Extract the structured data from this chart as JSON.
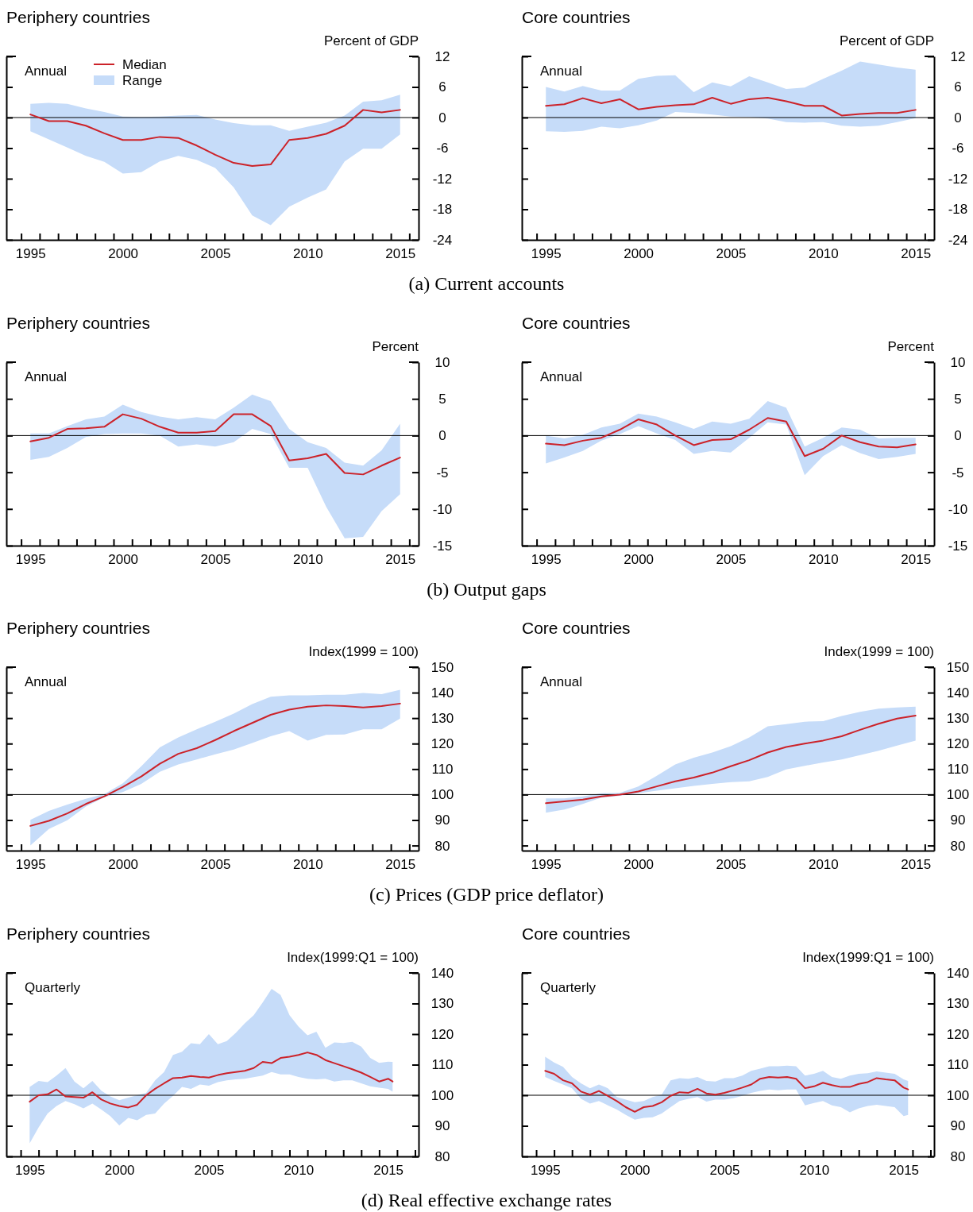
{
  "chart_data": [
    {
      "type": "line",
      "title": "Periphery countries",
      "ylabel": "Percent of GDP",
      "x": [
        1995,
        1996,
        1997,
        1998,
        1999,
        2000,
        2001,
        2002,
        2003,
        2004,
        2005,
        2006,
        2007,
        2008,
        2009,
        2010,
        2011,
        2012,
        2013,
        2014,
        2015
      ],
      "xlim": [
        1993.7,
        2016
      ],
      "xticks": [
        {
          "value": 1994.5,
          "label": null
        },
        {
          "value": 1995.5,
          "label": null
        },
        {
          "value": 1996.5,
          "label": null
        },
        {
          "value": 1997.5,
          "label": null
        },
        {
          "value": 1998.5,
          "label": null
        },
        {
          "value": 1999.5,
          "label": null
        },
        {
          "value": 2000.5,
          "label": null
        },
        {
          "value": 2001.5,
          "label": null
        },
        {
          "value": 2002.5,
          "label": null
        },
        {
          "value": 2003.5,
          "label": null
        },
        {
          "value": 2004.5,
          "label": null
        },
        {
          "value": 2005.5,
          "label": null
        },
        {
          "value": 2006.5,
          "label": null
        },
        {
          "value": 2007.5,
          "label": null
        },
        {
          "value": 2008.5,
          "label": null
        },
        {
          "value": 2009.5,
          "label": null
        },
        {
          "value": 2010.5,
          "label": null
        },
        {
          "value": 2011.5,
          "label": null
        },
        {
          "value": 2012.5,
          "label": null
        },
        {
          "value": 2013.5,
          "label": null
        },
        {
          "value": 2014.5,
          "label": null
        },
        {
          "value": 2015.5,
          "label": null
        },
        1995,
        2000,
        2005,
        2010,
        2015
      ],
      "ylim": [
        -24,
        12
      ],
      "yticks": [
        -24,
        -18,
        -12,
        -6,
        0,
        6,
        12
      ],
      "legend": "top left",
      "annotations": [
        "Annual",
        "(a) Current accounts",
        "Range"
      ],
      "ref_lines": [
        {
          "axis": "y",
          "value": 0,
          "color": "#000000"
        }
      ],
      "series": [
        {
          "name": "Median",
          "color": "#cc2229",
          "values": [
            0.6,
            -0.7,
            -0.7,
            -1.6,
            -3.1,
            -4.4,
            -4.4,
            -3.8,
            -4.0,
            -5.5,
            -7.3,
            -8.9,
            -9.5,
            -9.2,
            -4.4,
            -4.0,
            -3.2,
            -1.6,
            1.5,
            1.0,
            1.5
          ],
          "lower": [
            -2.7,
            -4.3,
            -5.9,
            -7.5,
            -8.7,
            -11.0,
            -10.7,
            -8.6,
            -7.5,
            -8.3,
            -9.9,
            -13.7,
            -19.2,
            -21.1,
            -17.5,
            -15.7,
            -14.1,
            -8.6,
            -6.1,
            -6.1,
            -3.3
          ],
          "upper": [
            2.7,
            2.9,
            2.7,
            1.8,
            1.1,
            0.2,
            0.1,
            0.2,
            0.4,
            0.5,
            -0.4,
            -1.1,
            -1.5,
            -1.5,
            -2.6,
            -1.8,
            -1.0,
            0.4,
            3.1,
            3.4,
            4.5
          ]
        }
      ]
    },
    {
      "type": "line",
      "title": "Core countries",
      "ylabel": "Percent of GDP",
      "x": [
        1995,
        1996,
        1997,
        1998,
        1999,
        2000,
        2001,
        2002,
        2003,
        2004,
        2005,
        2006,
        2007,
        2008,
        2009,
        2010,
        2011,
        2012,
        2013,
        2014,
        2015
      ],
      "xlim": [
        1993.7,
        2016
      ],
      "xticks": [
        {
          "value": 1994.5,
          "label": null
        },
        {
          "value": 1995.5,
          "label": null
        },
        {
          "value": 1996.5,
          "label": null
        },
        {
          "value": 1997.5,
          "label": null
        },
        {
          "value": 1998.5,
          "label": null
        },
        {
          "value": 1999.5,
          "label": null
        },
        {
          "value": 2000.5,
          "label": null
        },
        {
          "value": 2001.5,
          "label": null
        },
        {
          "value": 2002.5,
          "label": null
        },
        {
          "value": 2003.5,
          "label": null
        },
        {
          "value": 2004.5,
          "label": null
        },
        {
          "value": 2005.5,
          "label": null
        },
        {
          "value": 2006.5,
          "label": null
        },
        {
          "value": 2007.5,
          "label": null
        },
        {
          "value": 2008.5,
          "label": null
        },
        {
          "value": 2009.5,
          "label": null
        },
        {
          "value": 2010.5,
          "label": null
        },
        {
          "value": 2011.5,
          "label": null
        },
        {
          "value": 2012.5,
          "label": null
        },
        {
          "value": 2013.5,
          "label": null
        },
        {
          "value": 2014.5,
          "label": null
        },
        {
          "value": 2015.5,
          "label": null
        },
        1995,
        2000,
        2005,
        2010,
        2015
      ],
      "ylim": [
        -24,
        12
      ],
      "yticks": [
        -24,
        -18,
        -12,
        -6,
        0,
        6,
        12
      ],
      "annotations": [
        "Annual"
      ],
      "ref_lines": [
        {
          "axis": "y",
          "value": 0,
          "color": "#000000"
        }
      ],
      "series": [
        {
          "color": "#cc2229",
          "values": [
            2.3,
            2.6,
            3.8,
            2.8,
            3.6,
            1.6,
            2.1,
            2.4,
            2.6,
            3.9,
            2.7,
            3.6,
            3.9,
            3.2,
            2.3,
            2.3,
            0.4,
            0.7,
            0.9,
            0.9,
            1.5
          ],
          "lower": [
            -2.7,
            -2.8,
            -2.6,
            -1.8,
            -2.1,
            -1.5,
            -0.6,
            1.1,
            0.9,
            0.6,
            0.2,
            0.1,
            -0.2,
            -0.9,
            -1.0,
            -0.9,
            -1.6,
            -1.8,
            -1.6,
            -0.9,
            -0.1
          ],
          "upper": [
            6.0,
            5.1,
            6.2,
            5.3,
            5.3,
            7.6,
            8.2,
            8.3,
            5.0,
            6.9,
            6.1,
            8.1,
            6.9,
            5.6,
            5.9,
            7.6,
            9.2,
            11.0,
            10.4,
            9.8,
            9.4
          ]
        }
      ]
    },
    {
      "type": "line",
      "title": "Periphery countries",
      "ylabel": "Percent",
      "x": [
        1995,
        1996,
        1997,
        1998,
        1999,
        2000,
        2001,
        2002,
        2003,
        2004,
        2005,
        2006,
        2007,
        2008,
        2009,
        2010,
        2011,
        2012,
        2013,
        2014,
        2015
      ],
      "xlim": [
        1993.7,
        2016
      ],
      "xticks": [
        {
          "value": 1994.5,
          "label": null
        },
        {
          "value": 1995.5,
          "label": null
        },
        {
          "value": 1996.5,
          "label": null
        },
        {
          "value": 1997.5,
          "label": null
        },
        {
          "value": 1998.5,
          "label": null
        },
        {
          "value": 1999.5,
          "label": null
        },
        {
          "value": 2000.5,
          "label": null
        },
        {
          "value": 2001.5,
          "label": null
        },
        {
          "value": 2002.5,
          "label": null
        },
        {
          "value": 2003.5,
          "label": null
        },
        {
          "value": 2004.5,
          "label": null
        },
        {
          "value": 2005.5,
          "label": null
        },
        {
          "value": 2006.5,
          "label": null
        },
        {
          "value": 2007.5,
          "label": null
        },
        {
          "value": 2008.5,
          "label": null
        },
        {
          "value": 2009.5,
          "label": null
        },
        {
          "value": 2010.5,
          "label": null
        },
        {
          "value": 2011.5,
          "label": null
        },
        {
          "value": 2012.5,
          "label": null
        },
        {
          "value": 2013.5,
          "label": null
        },
        {
          "value": 2014.5,
          "label": null
        },
        {
          "value": 2015.5,
          "label": null
        },
        1995,
        2000,
        2005,
        2010,
        2015
      ],
      "ylim": [
        -15,
        10
      ],
      "yticks": [
        -15,
        -10,
        -5,
        0,
        5,
        10
      ],
      "annotations": [
        "Annual",
        "(b) Output gaps"
      ],
      "ref_lines": [
        {
          "axis": "y",
          "value": 0,
          "color": "#000000"
        }
      ],
      "series": [
        {
          "color": "#cc2229",
          "values": [
            -0.8,
            -0.3,
            0.9,
            1.0,
            1.2,
            2.9,
            2.3,
            1.2,
            0.4,
            0.4,
            0.6,
            2.9,
            2.9,
            1.3,
            -3.4,
            -3.1,
            -2.5,
            -5.1,
            -5.3,
            -4.1,
            -3.0
          ],
          "lower": [
            -3.3,
            -2.9,
            -1.7,
            -0.2,
            0.2,
            0.3,
            0.3,
            0.0,
            -1.5,
            -1.2,
            -1.5,
            -0.9,
            0.9,
            0.2,
            -4.4,
            -4.4,
            -9.7,
            -14.0,
            -13.8,
            -10.3,
            -8.0
          ],
          "upper": [
            0.3,
            0.3,
            1.3,
            2.2,
            2.6,
            4.2,
            3.2,
            2.6,
            2.2,
            2.5,
            2.2,
            3.8,
            5.6,
            4.7,
            0.9,
            -0.9,
            -1.7,
            -3.7,
            -4.1,
            -2.0,
            1.6
          ]
        }
      ]
    },
    {
      "type": "line",
      "title": "Core countries",
      "ylabel": "Percent",
      "x": [
        1995,
        1996,
        1997,
        1998,
        1999,
        2000,
        2001,
        2002,
        2003,
        2004,
        2005,
        2006,
        2007,
        2008,
        2009,
        2010,
        2011,
        2012,
        2013,
        2014,
        2015
      ],
      "xlim": [
        1993.7,
        2016
      ],
      "xticks": [
        {
          "value": 1994.5,
          "label": null
        },
        {
          "value": 1995.5,
          "label": null
        },
        {
          "value": 1996.5,
          "label": null
        },
        {
          "value": 1997.5,
          "label": null
        },
        {
          "value": 1998.5,
          "label": null
        },
        {
          "value": 1999.5,
          "label": null
        },
        {
          "value": 2000.5,
          "label": null
        },
        {
          "value": 2001.5,
          "label": null
        },
        {
          "value": 2002.5,
          "label": null
        },
        {
          "value": 2003.5,
          "label": null
        },
        {
          "value": 2004.5,
          "label": null
        },
        {
          "value": 2005.5,
          "label": null
        },
        {
          "value": 2006.5,
          "label": null
        },
        {
          "value": 2007.5,
          "label": null
        },
        {
          "value": 2008.5,
          "label": null
        },
        {
          "value": 2009.5,
          "label": null
        },
        {
          "value": 2010.5,
          "label": null
        },
        {
          "value": 2011.5,
          "label": null
        },
        {
          "value": 2012.5,
          "label": null
        },
        {
          "value": 2013.5,
          "label": null
        },
        {
          "value": 2014.5,
          "label": null
        },
        {
          "value": 2015.5,
          "label": null
        },
        1995,
        2000,
        2005,
        2010,
        2015
      ],
      "ylim": [
        -15,
        10
      ],
      "yticks": [
        -15,
        -10,
        -5,
        0,
        5,
        10
      ],
      "annotations": [
        "Annual"
      ],
      "ref_lines": [
        {
          "axis": "y",
          "value": 0,
          "color": "#000000"
        }
      ],
      "series": [
        {
          "color": "#cc2229",
          "values": [
            -1.1,
            -1.3,
            -0.7,
            -0.3,
            0.8,
            2.2,
            1.5,
            0.0,
            -1.3,
            -0.6,
            -0.5,
            0.8,
            2.4,
            1.9,
            -2.8,
            -1.8,
            0.0,
            -0.9,
            -1.5,
            -1.6,
            -1.2
          ],
          "lower": [
            -3.8,
            -3.0,
            -2.1,
            -0.7,
            0.2,
            1.3,
            0.3,
            -0.6,
            -2.5,
            -2.1,
            -2.3,
            -0.3,
            1.8,
            1.5,
            -5.4,
            -2.8,
            -1.3,
            -2.4,
            -3.2,
            -2.9,
            -2.5
          ],
          "upper": [
            0.0,
            -0.4,
            0.1,
            1.1,
            1.6,
            3.0,
            2.6,
            1.8,
            0.9,
            1.9,
            1.6,
            2.3,
            4.7,
            3.8,
            -1.5,
            -0.3,
            1.1,
            0.8,
            -0.4,
            -0.3,
            -0.3
          ]
        }
      ]
    },
    {
      "type": "line",
      "title": "Periphery countries",
      "ylabel": "Index(1999 = 100)",
      "x": [
        1995,
        1996,
        1997,
        1998,
        1999,
        2000,
        2001,
        2002,
        2003,
        2004,
        2005,
        2006,
        2007,
        2008,
        2009,
        2010,
        2011,
        2012,
        2013,
        2014,
        2015
      ],
      "xlim": [
        1993.7,
        2016
      ],
      "xticks": [
        {
          "value": 1994.5,
          "label": null
        },
        {
          "value": 1995.5,
          "label": null
        },
        {
          "value": 1996.5,
          "label": null
        },
        {
          "value": 1997.5,
          "label": null
        },
        {
          "value": 1998.5,
          "label": null
        },
        {
          "value": 1999.5,
          "label": null
        },
        {
          "value": 2000.5,
          "label": null
        },
        {
          "value": 2001.5,
          "label": null
        },
        {
          "value": 2002.5,
          "label": null
        },
        {
          "value": 2003.5,
          "label": null
        },
        {
          "value": 2004.5,
          "label": null
        },
        {
          "value": 2005.5,
          "label": null
        },
        {
          "value": 2006.5,
          "label": null
        },
        {
          "value": 2007.5,
          "label": null
        },
        {
          "value": 2008.5,
          "label": null
        },
        {
          "value": 2009.5,
          "label": null
        },
        {
          "value": 2010.5,
          "label": null
        },
        {
          "value": 2011.5,
          "label": null
        },
        {
          "value": 2012.5,
          "label": null
        },
        {
          "value": 2013.5,
          "label": null
        },
        {
          "value": 2014.5,
          "label": null
        },
        {
          "value": 2015.5,
          "label": null
        },
        1995,
        2000,
        2005,
        2010,
        2015
      ],
      "ylim": [
        78,
        150
      ],
      "yticks": [
        80,
        90,
        100,
        110,
        120,
        130,
        140,
        150
      ],
      "annotations": [
        "Annual",
        "(c) Prices (GDP price deflator)"
      ],
      "ref_lines": [
        {
          "axis": "y",
          "value": 100,
          "color": "#000000"
        }
      ],
      "series": [
        {
          "color": "#cc2229",
          "values": [
            87.7,
            89.7,
            92.6,
            96.3,
            99.3,
            103.0,
            107.1,
            112.1,
            116.0,
            118.2,
            121.4,
            124.9,
            128.1,
            131.3,
            133.3,
            134.5,
            135.0,
            134.7,
            134.2,
            134.7,
            135.7
          ],
          "lower": [
            80.0,
            86.5,
            89.9,
            95.3,
            99.0,
            101.0,
            104.2,
            108.9,
            111.8,
            113.8,
            115.8,
            117.7,
            120.2,
            122.9,
            124.9,
            121.2,
            123.4,
            123.6,
            125.6,
            125.6,
            129.8
          ],
          "upper": [
            90.1,
            93.6,
            96.1,
            98.3,
            100.2,
            104.4,
            111.1,
            118.5,
            122.4,
            125.6,
            128.6,
            131.8,
            135.5,
            138.4,
            138.9,
            138.9,
            139.2,
            139.2,
            139.9,
            139.4,
            141.1
          ]
        }
      ]
    },
    {
      "type": "line",
      "title": "Core countries",
      "ylabel": "Index(1999 = 100)",
      "x": [
        1995,
        1996,
        1997,
        1998,
        1999,
        2000,
        2001,
        2002,
        2003,
        2004,
        2005,
        2006,
        2007,
        2008,
        2009,
        2010,
        2011,
        2012,
        2013,
        2014,
        2015
      ],
      "xlim": [
        1993.7,
        2016
      ],
      "xticks": [
        {
          "value": 1994.5,
          "label": null
        },
        {
          "value": 1995.5,
          "label": null
        },
        {
          "value": 1996.5,
          "label": null
        },
        {
          "value": 1997.5,
          "label": null
        },
        {
          "value": 1998.5,
          "label": null
        },
        {
          "value": 1999.5,
          "label": null
        },
        {
          "value": 2000.5,
          "label": null
        },
        {
          "value": 2001.5,
          "label": null
        },
        {
          "value": 2002.5,
          "label": null
        },
        {
          "value": 2003.5,
          "label": null
        },
        {
          "value": 2004.5,
          "label": null
        },
        {
          "value": 2005.5,
          "label": null
        },
        {
          "value": 2006.5,
          "label": null
        },
        {
          "value": 2007.5,
          "label": null
        },
        {
          "value": 2008.5,
          "label": null
        },
        {
          "value": 2009.5,
          "label": null
        },
        {
          "value": 2010.5,
          "label": null
        },
        {
          "value": 2011.5,
          "label": null
        },
        {
          "value": 2012.5,
          "label": null
        },
        {
          "value": 2013.5,
          "label": null
        },
        {
          "value": 2014.5,
          "label": null
        },
        {
          "value": 2015.5,
          "label": null
        },
        1995,
        2000,
        2005,
        2010,
        2015
      ],
      "ylim": [
        78,
        150
      ],
      "yticks": [
        80,
        90,
        100,
        110,
        120,
        130,
        140,
        150
      ],
      "annotations": [
        "Annual"
      ],
      "ref_lines": [
        {
          "axis": "y",
          "value": 100,
          "color": "#000000"
        }
      ],
      "series": [
        {
          "color": "#cc2229",
          "values": [
            96.6,
            97.3,
            98.0,
            99.3,
            100.0,
            101.2,
            103.2,
            105.2,
            106.7,
            108.6,
            111.1,
            113.5,
            116.5,
            118.7,
            120.0,
            121.2,
            122.9,
            125.4,
            127.8,
            129.8,
            131.0
          ],
          "lower": [
            92.9,
            94.1,
            96.3,
            98.8,
            99.5,
            100.5,
            101.5,
            102.5,
            103.4,
            104.2,
            104.9,
            105.2,
            106.9,
            109.9,
            111.3,
            112.6,
            113.8,
            115.5,
            117.2,
            119.2,
            121.2
          ],
          "upper": [
            98.5,
            98.5,
            99.3,
            100.5,
            100.7,
            103.2,
            107.4,
            111.8,
            114.5,
            116.5,
            119.0,
            122.4,
            126.8,
            127.6,
            128.6,
            128.8,
            130.8,
            132.5,
            133.7,
            134.2,
            134.5
          ]
        }
      ]
    },
    {
      "type": "line",
      "title": "Periphery countries",
      "ylabel": "Index(1999:Q1 = 100)",
      "x": [
        1995,
        1995.5,
        1996,
        1996.5,
        1997,
        1997.5,
        1998,
        1998.5,
        1999,
        1999.5,
        2000,
        2000.5,
        2001,
        2001.5,
        2002,
        2002.5,
        2003,
        2003.5,
        2004,
        2004.5,
        2005,
        2005.5,
        2006,
        2006.5,
        2007,
        2007.5,
        2008,
        2008.5,
        2009,
        2009.5,
        2010,
        2010.5,
        2011,
        2011.5,
        2012,
        2012.5,
        2013,
        2013.5,
        2014,
        2014.5,
        2015,
        2015.25
      ],
      "xlim": [
        1993.7,
        2016.7
      ],
      "xticks": [
        {
          "value": 1994.5,
          "label": null
        },
        {
          "value": 1995.5,
          "label": null
        },
        {
          "value": 1996.5,
          "label": null
        },
        {
          "value": 1997.5,
          "label": null
        },
        {
          "value": 1998.5,
          "label": null
        },
        {
          "value": 1999.5,
          "label": null
        },
        {
          "value": 2000.5,
          "label": null
        },
        {
          "value": 2001.5,
          "label": null
        },
        {
          "value": 2002.5,
          "label": null
        },
        {
          "value": 2003.5,
          "label": null
        },
        {
          "value": 2004.5,
          "label": null
        },
        {
          "value": 2005.5,
          "label": null
        },
        {
          "value": 2006.5,
          "label": null
        },
        {
          "value": 2007.5,
          "label": null
        },
        {
          "value": 2008.5,
          "label": null
        },
        {
          "value": 2009.5,
          "label": null
        },
        {
          "value": 2010.5,
          "label": null
        },
        {
          "value": 2011.5,
          "label": null
        },
        {
          "value": 2012.5,
          "label": null
        },
        {
          "value": 2013.5,
          "label": null
        },
        {
          "value": 2014.5,
          "label": null
        },
        {
          "value": 2015.5,
          "label": null
        },
        {
          "value": 2016.5,
          "label": null
        },
        1995,
        2000,
        2005,
        2010,
        2015
      ],
      "ylim": [
        80,
        140
      ],
      "yticks": [
        80,
        90,
        100,
        110,
        120,
        130,
        140
      ],
      "annotations": [
        "Quarterly",
        "(d) Real effective exchange rates"
      ],
      "ref_lines": [
        {
          "axis": "y",
          "value": 100,
          "color": "#000000"
        }
      ],
      "series": [
        {
          "color": "#cc2229",
          "values": [
            97.9,
            100.0,
            100.3,
            101.9,
            99.6,
            99.4,
            99.2,
            101.0,
            98.6,
            97.3,
            96.5,
            96.0,
            96.9,
            100.0,
            102.1,
            103.9,
            105.6,
            105.8,
            106.3,
            106.0,
            105.8,
            106.6,
            107.2,
            107.6,
            108.0,
            108.9,
            110.9,
            110.5,
            112.2,
            112.6,
            113.2,
            114.0,
            113.2,
            111.5,
            110.5,
            109.5,
            108.5,
            107.4,
            106.0,
            104.5,
            105.4,
            104.5
          ],
          "lower": [
            84.3,
            89.5,
            94.0,
            96.5,
            98.1,
            97.1,
            95.7,
            97.3,
            95.3,
            93.2,
            90.1,
            92.6,
            91.8,
            93.6,
            94.0,
            97.3,
            99.8,
            102.7,
            102.1,
            103.5,
            103.1,
            104.3,
            104.9,
            105.2,
            105.4,
            105.9,
            106.4,
            107.6,
            106.8,
            106.8,
            106.0,
            105.4,
            105.2,
            105.4,
            104.5,
            104.9,
            104.9,
            103.9,
            102.9,
            102.5,
            102.1,
            101.2
          ],
          "upper": [
            102.7,
            104.7,
            104.3,
            106.4,
            108.9,
            104.5,
            102.3,
            104.7,
            101.5,
            99.6,
            98.4,
            99.2,
            100.0,
            100.8,
            104.9,
            107.6,
            113.2,
            114.2,
            117.0,
            116.7,
            120.0,
            116.7,
            117.7,
            120.4,
            123.5,
            126.2,
            130.3,
            134.8,
            132.8,
            126.2,
            122.5,
            119.6,
            120.8,
            115.5,
            117.3,
            117.1,
            117.5,
            115.9,
            112.2,
            110.6,
            111.0,
            110.9
          ]
        }
      ]
    },
    {
      "type": "line",
      "title": "Core countries",
      "ylabel": "Index(1999:Q1 = 100)",
      "x": [
        1995,
        1995.5,
        1996,
        1996.5,
        1997,
        1997.5,
        1998,
        1998.5,
        1999,
        1999.5,
        2000,
        2000.5,
        2001,
        2001.5,
        2002,
        2002.5,
        2003,
        2003.5,
        2004,
        2004.5,
        2005,
        2005.5,
        2006,
        2006.5,
        2007,
        2007.5,
        2008,
        2008.5,
        2009,
        2009.5,
        2010,
        2010.5,
        2011,
        2011.5,
        2012,
        2012.5,
        2013,
        2013.5,
        2014,
        2014.5,
        2015,
        2015.25
      ],
      "xlim": [
        1993.7,
        2016.7
      ],
      "xticks": [
        {
          "value": 1994.5,
          "label": null
        },
        {
          "value": 1995.5,
          "label": null
        },
        {
          "value": 1996.5,
          "label": null
        },
        {
          "value": 1997.5,
          "label": null
        },
        {
          "value": 1998.5,
          "label": null
        },
        {
          "value": 1999.5,
          "label": null
        },
        {
          "value": 2000.5,
          "label": null
        },
        {
          "value": 2001.5,
          "label": null
        },
        {
          "value": 2002.5,
          "label": null
        },
        {
          "value": 2003.5,
          "label": null
        },
        {
          "value": 2004.5,
          "label": null
        },
        {
          "value": 2005.5,
          "label": null
        },
        {
          "value": 2006.5,
          "label": null
        },
        {
          "value": 2007.5,
          "label": null
        },
        {
          "value": 2008.5,
          "label": null
        },
        {
          "value": 2009.5,
          "label": null
        },
        {
          "value": 2010.5,
          "label": null
        },
        {
          "value": 2011.5,
          "label": null
        },
        {
          "value": 2012.5,
          "label": null
        },
        {
          "value": 2013.5,
          "label": null
        },
        {
          "value": 2014.5,
          "label": null
        },
        {
          "value": 2015.5,
          "label": null
        },
        {
          "value": 2016.5,
          "label": null
        },
        1995,
        2000,
        2005,
        2010,
        2015
      ],
      "ylim": [
        80,
        140
      ],
      "yticks": [
        80,
        90,
        100,
        110,
        120,
        130,
        140
      ],
      "annotations": [
        "Quarterly"
      ],
      "ref_lines": [
        {
          "axis": "y",
          "value": 100,
          "color": "#000000"
        }
      ],
      "series": [
        {
          "color": "#cc2229",
          "values": [
            108.0,
            107.0,
            104.9,
            103.9,
            101.2,
            100.2,
            101.4,
            99.8,
            98.1,
            96.1,
            94.6,
            96.1,
            96.5,
            97.7,
            99.8,
            101.0,
            100.8,
            102.1,
            100.6,
            100.2,
            100.8,
            101.6,
            102.5,
            103.5,
            105.4,
            106.0,
            105.8,
            106.0,
            105.4,
            102.3,
            102.9,
            104.1,
            103.3,
            102.7,
            102.7,
            103.7,
            104.3,
            105.6,
            105.2,
            104.9,
            102.5,
            101.9
          ],
          "lower": [
            106.0,
            104.7,
            103.5,
            102.3,
            98.8,
            97.3,
            98.1,
            96.7,
            95.3,
            93.6,
            92.0,
            92.6,
            92.8,
            94.0,
            96.1,
            98.1,
            98.8,
            99.4,
            97.9,
            98.6,
            98.6,
            99.0,
            99.8,
            100.8,
            101.4,
            101.9,
            101.6,
            101.9,
            101.9,
            96.7,
            97.5,
            98.1,
            96.7,
            96.1,
            94.4,
            95.7,
            96.5,
            96.9,
            96.5,
            96.1,
            93.2,
            93.6
          ],
          "upper": [
            112.6,
            110.7,
            109.3,
            106.0,
            103.9,
            102.3,
            103.5,
            102.3,
            99.4,
            98.6,
            97.7,
            98.1,
            99.4,
            100.2,
            104.9,
            105.6,
            105.4,
            106.0,
            104.7,
            104.5,
            105.6,
            105.6,
            106.4,
            108.0,
            108.7,
            109.5,
            109.5,
            109.7,
            109.5,
            106.4,
            107.0,
            108.0,
            106.0,
            105.4,
            106.4,
            107.0,
            107.2,
            107.8,
            107.4,
            107.0,
            105.2,
            104.7
          ]
        }
      ]
    }
  ]
}
